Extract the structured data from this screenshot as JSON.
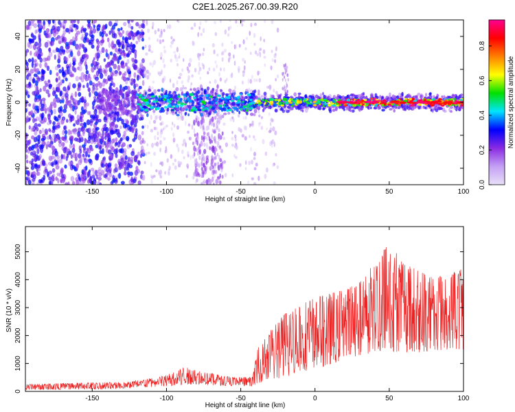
{
  "title": "C2E1.2025.267.00.39.R20",
  "chart_data": [
    {
      "type": "heatmap",
      "xlabel": "Height of straight line (km)",
      "ylabel": "Frequency (Hz)",
      "xlim": [
        -195,
        100
      ],
      "ylim": [
        -50,
        50
      ],
      "x_ticks": [
        -150,
        -100,
        -50,
        0,
        50,
        100
      ],
      "y_ticks": [
        -40,
        -20,
        0,
        20,
        40
      ],
      "colorbar": {
        "label": "Normalized spectral amplitude",
        "range": [
          0.0,
          0.95
        ],
        "ticks": [
          0.0,
          0.2,
          0.4,
          0.6,
          0.8
        ],
        "colors": [
          "#e8e0f8",
          "#c4a0f4",
          "#8a2be2",
          "#0000ff",
          "#00e5ff",
          "#00e000",
          "#ffff00",
          "#ff8000",
          "#ff0000",
          "#ff0090"
        ]
      }
    },
    {
      "type": "line",
      "xlabel": "Height of straight line (km)",
      "ylabel": "SNR (10 * v/v)",
      "xlim": [
        -195,
        100
      ],
      "ylim": [
        0,
        5900
      ],
      "x_ticks": [
        -150,
        -100,
        -50,
        0,
        50,
        100
      ],
      "y_ticks": [
        0,
        1000,
        2000,
        3000,
        4000,
        5000
      ],
      "color": "#ee2222",
      "envelope": {
        "x": [
          -195,
          -160,
          -130,
          -115,
          -100,
          -88,
          -80,
          -70,
          -55,
          -42,
          -38,
          -30,
          -20,
          -10,
          0,
          10,
          20,
          30,
          40,
          50,
          60,
          70,
          80,
          90,
          100
        ],
        "low": [
          60,
          70,
          90,
          150,
          180,
          240,
          260,
          220,
          200,
          180,
          300,
          420,
          500,
          700,
          800,
          950,
          1150,
          1300,
          1350,
          1400,
          1400,
          1400,
          1450,
          1500,
          1500
        ],
        "high": [
          260,
          300,
          340,
          420,
          580,
          880,
          760,
          650,
          500,
          520,
          1700,
          2200,
          2800,
          3100,
          3350,
          3500,
          3650,
          3900,
          4700,
          5300,
          4600,
          4300,
          4100,
          4200,
          4400
        ]
      }
    }
  ]
}
